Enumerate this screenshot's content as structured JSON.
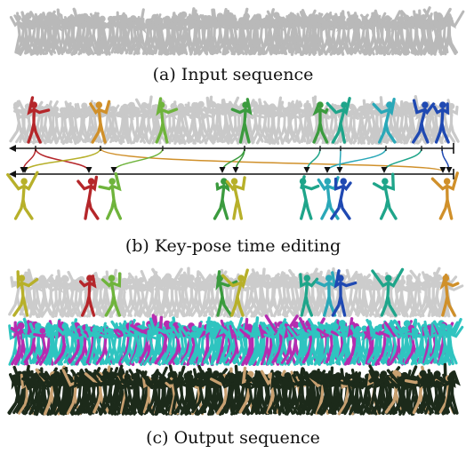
{
  "figure": {
    "captions": {
      "input": "(a) Input sequence",
      "editing": "(b) Key-pose time editing",
      "output": "(c) Output sequence"
    },
    "colors": {
      "gray": "#b9b9b9",
      "red": "#b5262a",
      "orange": "#d0902a",
      "olive": "#b7b02a",
      "lime": "#6fb43c",
      "green": "#3b9b3e",
      "teal": "#1fa58a",
      "cyan": "#2aa8b8",
      "blue": "#1f49b2",
      "magenta": "#b62cb0",
      "crowd_cyan": "#2fc4c0",
      "dark": "#1c2a1a",
      "tan": "#c8a070"
    },
    "keyposes": [
      {
        "color": "red"
      },
      {
        "color": "orange"
      },
      {
        "color": "lime"
      },
      {
        "color": "green"
      },
      {
        "color": "green"
      },
      {
        "color": "teal"
      },
      {
        "color": "cyan"
      },
      {
        "color": "blue"
      }
    ]
  }
}
